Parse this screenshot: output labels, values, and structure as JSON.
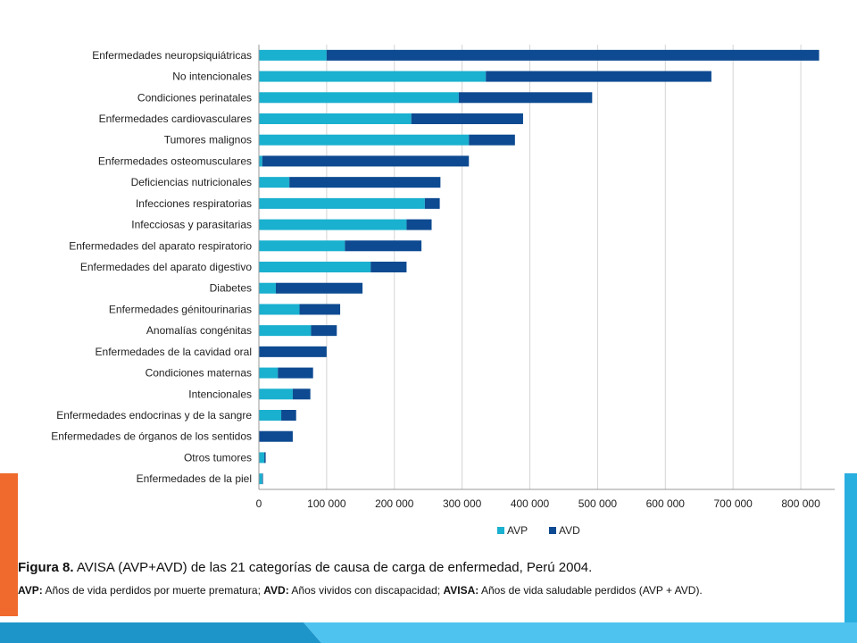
{
  "slide": {
    "colors": {
      "accent_orange": "#ef6a2c",
      "accent_cyan": "#29aee0",
      "accent_light": "#4fc3ef"
    }
  },
  "chart_data": {
    "type": "bar",
    "orientation": "horizontal",
    "stacked": true,
    "categories": [
      "Enfermedades neuropsiquiátricas",
      "No intencionales",
      "Condiciones perinatales",
      "Enfermedades cardiovasculares",
      "Tumores malignos",
      "Enfermedades osteomusculares",
      "Deficiencias nutricionales",
      "Infecciones respiratorias",
      "Infecciosas y parasitarias",
      "Enfermedades del aparato respiratorio",
      "Enfermedades del aparato digestivo",
      "Diabetes",
      "Enfermedades génitourinarias",
      "Anomalías congénitas",
      "Enfermedades de la cavidad oral",
      "Condiciones maternas",
      "Intencionales",
      "Enfermedades endocrinas y de la sangre",
      "Enfermedades de órganos de los sentidos",
      "Otros tumores",
      "Enfermedades de la piel"
    ],
    "series": [
      {
        "name": "AVP",
        "color": "#1ab0cf",
        "values": [
          100000,
          335000,
          295000,
          225000,
          310000,
          5000,
          45000,
          245000,
          218000,
          127000,
          165000,
          25000,
          60000,
          77000,
          0,
          28000,
          50000,
          33000,
          0,
          8000,
          5000
        ]
      },
      {
        "name": "AVD",
        "color": "#0d4a91",
        "values": [
          727000,
          333000,
          197000,
          165000,
          68000,
          305000,
          223000,
          22000,
          37000,
          113000,
          53000,
          128000,
          60000,
          38000,
          100000,
          52000,
          26000,
          22000,
          50000,
          2000,
          1000
        ]
      }
    ],
    "xlim": [
      0,
      850000
    ],
    "xticks": [
      "0",
      "100 000",
      "200 000",
      "300 000",
      "400 000",
      "500 000",
      "600 000",
      "700 000",
      "800 000"
    ],
    "grid": "vertical",
    "legend": "bottom-center",
    "xlabel": "",
    "ylabel": ""
  },
  "caption": {
    "figure_label": "Figura 8.",
    "figure_text": " AVISA (AVP+AVD) de las 21 categorías de causa de carga de enfermedad, Perú 2004.",
    "avp_term": "AVP:",
    "avp_def": " Años de vida perdidos por muerte prematura; ",
    "avd_term": "AVD:",
    "avd_def": " Años vividos con discapacidad; ",
    "avisa_term": "AVISA:",
    "avisa_def": " Años de vida saludable perdidos (AVP + AVD)."
  }
}
